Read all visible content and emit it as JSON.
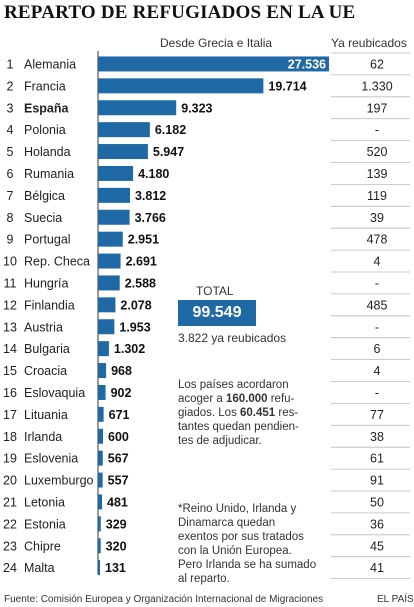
{
  "title": "REPARTO DE REFUGIADOS EN LA UE",
  "headers": {
    "bars": "Desde Grecia e Italia",
    "relocated": "Ya reubicados"
  },
  "colors": {
    "bar": "#1f6aa5",
    "grid": "#bbbbbb",
    "text": "#222222"
  },
  "chart_data": {
    "type": "bar",
    "orientation": "horizontal",
    "ranks": [
      "1",
      "2",
      "3",
      "4",
      "5",
      "6",
      "7",
      "8",
      "9",
      "10",
      "11",
      "12",
      "13",
      "14",
      "15",
      "16",
      "17",
      "18",
      "19",
      "20",
      "21",
      "22",
      "23",
      "24"
    ],
    "categories": [
      "Alemania",
      "Francia",
      "España",
      "Polonia",
      "Holanda",
      "Rumania",
      "Bélgica",
      "Suecia",
      "Portugal",
      "Rep. Checa",
      "Hungría",
      "Finlandia",
      "Austria",
      "Bulgaria",
      "Croacia",
      "Eslovaquia",
      "Lituania",
      "Irlanda",
      "Eslovenia",
      "Luxemburgo",
      "Letonia",
      "Estonia",
      "Chipre",
      "Malta"
    ],
    "values": [
      27536,
      19714,
      9323,
      6182,
      5947,
      4180,
      3812,
      3766,
      2951,
      2691,
      2588,
      2078,
      1953,
      1302,
      968,
      902,
      671,
      600,
      567,
      557,
      481,
      329,
      320,
      131
    ],
    "value_labels": [
      "27.536",
      "19.714",
      "9.323",
      "6.182",
      "5.947",
      "4.180",
      "3.812",
      "3.766",
      "2.951",
      "2.691",
      "2.588",
      "2.078",
      "1.953",
      "1.302",
      "968",
      "902",
      "671",
      "600",
      "567",
      "557",
      "481",
      "329",
      "320",
      "131"
    ],
    "relocated_labels": [
      "62",
      "1.330",
      "197",
      "-",
      "520",
      "139",
      "119",
      "39",
      "478",
      "4",
      "-",
      "485",
      "-",
      "6",
      "4",
      "-",
      "77",
      "38",
      "61",
      "91",
      "50",
      "36",
      "45",
      "41"
    ],
    "highlight": "España",
    "xlim": [
      0,
      27536
    ]
  },
  "total": {
    "label": "TOTAL",
    "value": "99.549",
    "relocated": "3.822 ya reubicados"
  },
  "note1": {
    "l1": "Los países acordaron",
    "l2a": "acoger a ",
    "l2b": "160.000",
    "l2c": " refu-",
    "l3a": "giados. Los ",
    "l3b": "60.451",
    "l3c": " res-",
    "l4": "tantes quedan pendien-",
    "l5": "tes de adjudicar."
  },
  "note2": {
    "l1": "*Reino Unido, Irlanda y",
    "l2": "Dinamarca quedan",
    "l3": "exentos por sus tratados",
    "l4": "con la Unión Europea.",
    "l5": "Pero Irlanda se ha sumado",
    "l6": "al reparto."
  },
  "footer": {
    "source": "Fuente: Comisión Europea y Organización Internacional de Migraciones",
    "credit": "EL PAÍS"
  }
}
